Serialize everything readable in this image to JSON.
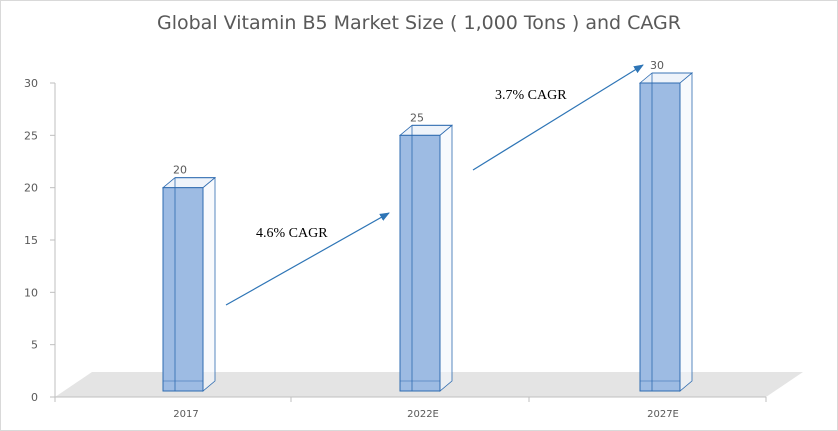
{
  "chart_data": {
    "type": "bar",
    "title": "Global Vitamin B5 Market Size ( 1,000 Tons ) and CAGR",
    "xlabel": "",
    "ylabel": "",
    "categories": [
      "2017",
      "2022E",
      "2027E"
    ],
    "values": [
      20,
      25,
      30
    ],
    "ylim": [
      0,
      30
    ],
    "yticks": [
      0,
      5,
      10,
      15,
      20,
      25,
      30
    ],
    "grid": false,
    "three_d": true,
    "bar_color": "#9dbbe3",
    "bar_edge_color": "#2e6bb0",
    "annotations": [
      {
        "text": "4.6% CAGR",
        "from": "2017",
        "to": "2022E"
      },
      {
        "text": "3.7% CAGR",
        "from": "2022E",
        "to": "2027E"
      }
    ],
    "arrow_color": "#2e75b6"
  }
}
